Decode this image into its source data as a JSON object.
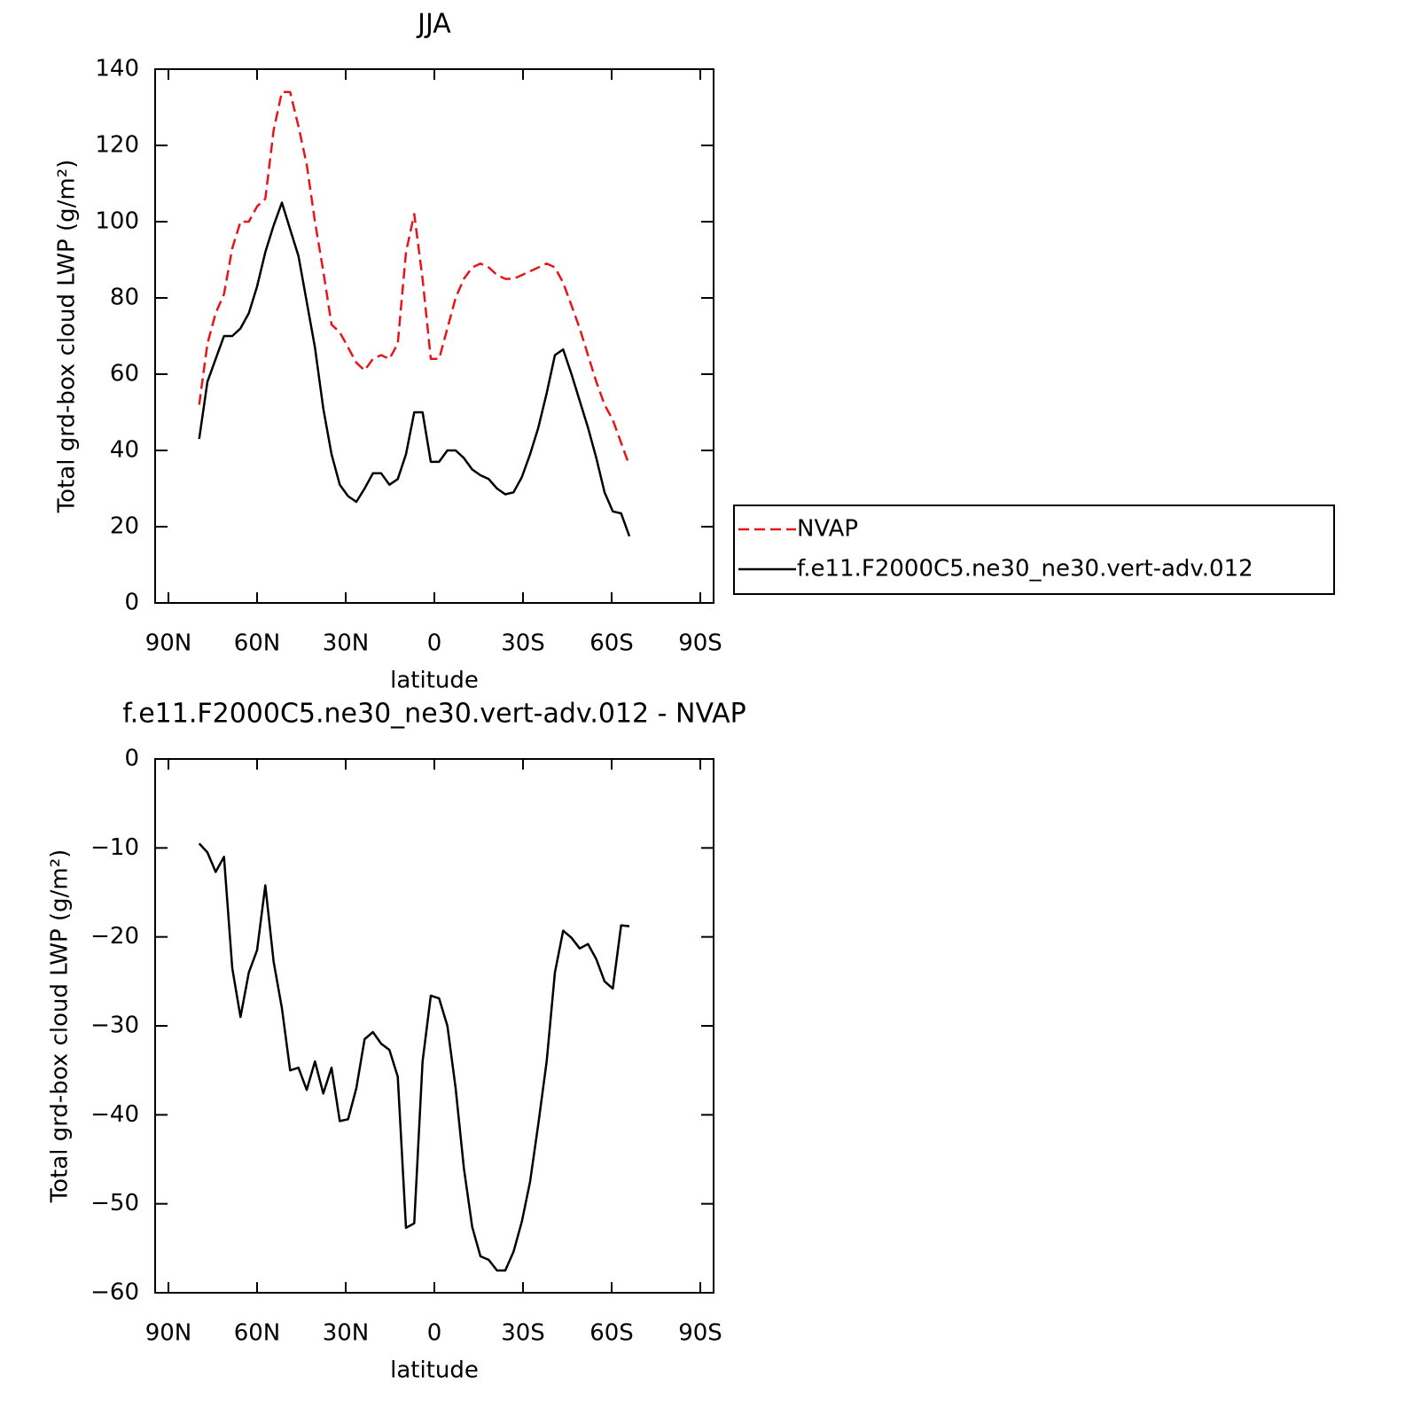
{
  "chart_data": [
    {
      "type": "line",
      "title": "JJA",
      "xlabel": "latitude",
      "ylabel": "Total grd-box cloud LWP (g/m²)",
      "x": [
        79.6,
        76.8,
        74,
        71.2,
        68.4,
        65.6,
        62.8,
        60,
        57.2,
        54.4,
        51.6,
        48.8,
        46,
        43.2,
        40.4,
        37.6,
        34.8,
        32,
        29.2,
        26.4,
        23.6,
        20.8,
        18,
        15.2,
        12.4,
        9.6,
        6.8,
        4,
        1.2,
        -1.6,
        -4.4,
        -7.2,
        -10,
        -12.8,
        -15.6,
        -18.4,
        -21.2,
        -24,
        -26.8,
        -29.6,
        -32.4,
        -35.2,
        -38,
        -40.8,
        -43.6,
        -46.4,
        -49.2,
        -52,
        -54.8,
        -57.6,
        -60.4,
        -63.2,
        -66
      ],
      "series": [
        {
          "name": "NVAP",
          "color": "#e8141a",
          "linestyle": "dashed",
          "values": [
            52,
            68,
            76,
            81,
            93,
            100,
            100,
            104,
            106,
            124,
            134,
            134,
            125,
            115,
            100,
            87,
            73,
            71,
            67,
            63,
            61,
            64,
            65,
            64,
            68,
            92,
            102,
            85,
            64,
            64,
            72,
            80,
            85,
            88,
            89,
            88,
            86,
            85,
            85,
            86,
            87,
            88,
            89,
            88,
            84,
            78,
            72,
            65,
            58,
            52,
            48,
            42,
            36
          ]
        },
        {
          "name": "f.e11.F2000C5.ne30_ne30.vert-adv.012",
          "color": "#000000",
          "linestyle": "solid",
          "values": [
            43,
            58,
            64,
            70,
            70,
            72,
            76,
            83,
            92,
            99,
            105,
            98,
            91,
            79,
            67,
            51,
            39,
            31,
            28,
            26.5,
            30,
            34,
            34,
            31,
            32.5,
            39,
            50,
            50,
            37,
            37,
            40,
            40,
            38,
            35,
            33.5,
            32.5,
            30,
            28.5,
            29,
            33,
            39,
            46,
            55,
            65,
            66.5,
            60,
            53,
            46,
            38,
            29,
            24,
            23.5,
            17.5
          ]
        }
      ],
      "xlim": [
        94.5,
        -94.5
      ],
      "xticks": [
        {
          "value": 90,
          "label": "90N"
        },
        {
          "value": 60,
          "label": "60N"
        },
        {
          "value": 30,
          "label": "30N"
        },
        0,
        {
          "value": -30,
          "label": "30S"
        },
        {
          "value": -60,
          "label": "60S"
        },
        {
          "value": -90,
          "label": "90S"
        }
      ],
      "ylim": [
        0,
        140
      ],
      "yticks": [
        0,
        20,
        40,
        60,
        80,
        100,
        120,
        140
      ],
      "legend": "right"
    },
    {
      "type": "line",
      "title": "f.e11.F2000C5.ne30_ne30.vert-adv.012 - NVAP",
      "xlabel": "latitude",
      "ylabel": "Total grd-box cloud LWP (g/m²)",
      "x": [
        79.6,
        76.8,
        74,
        71.2,
        68.4,
        65.6,
        62.8,
        60,
        57.2,
        54.4,
        51.6,
        48.8,
        46,
        43.2,
        40.4,
        37.6,
        34.8,
        32,
        29.2,
        26.4,
        23.6,
        20.8,
        18,
        15.2,
        12.4,
        9.6,
        6.8,
        4,
        1.2,
        -1.6,
        -4.4,
        -7.2,
        -10,
        -12.8,
        -15.6,
        -18.4,
        -21.2,
        -24,
        -26.8,
        -29.6,
        -32.4,
        -35.2,
        -38,
        -40.8,
        -43.6,
        -46.4,
        -49.2,
        -52,
        -54.8,
        -57.6,
        -60.4,
        -63.2,
        -66
      ],
      "values": [
        -9.5,
        -10.5,
        -12.7,
        -11,
        -23.5,
        -29,
        -24,
        -21.5,
        -14.2,
        -22.8,
        -28,
        -35,
        -34.7,
        -37.2,
        -34,
        -37.6,
        -34.7,
        -40.7,
        -40.5,
        -37,
        -31.5,
        -30.7,
        -32,
        -32.7,
        -35.7,
        -52.7,
        -52.2,
        -34,
        -26.6,
        -26.9,
        -30,
        -37,
        -46,
        -52.6,
        -55.9,
        -56.3,
        -57.5,
        -57.5,
        -55.4,
        -52,
        -47.5,
        -41,
        -34,
        -24,
        -19.3,
        -20.1,
        -21.3,
        -20.8,
        -22.5,
        -25,
        -25.8,
        -18.7,
        -18.8
      ],
      "color": "#000000",
      "xlim": [
        94.5,
        -94.5
      ],
      "xticks": [
        {
          "value": 90,
          "label": "90N"
        },
        {
          "value": 60,
          "label": "60N"
        },
        {
          "value": 30,
          "label": "30N"
        },
        0,
        {
          "value": -30,
          "label": "30S"
        },
        {
          "value": -60,
          "label": "60S"
        },
        {
          "value": -90,
          "label": "90S"
        }
      ],
      "ylim": [
        -60,
        0
      ],
      "yticks": [
        -60,
        -50,
        -40,
        -30,
        -20,
        -10,
        0
      ]
    }
  ]
}
